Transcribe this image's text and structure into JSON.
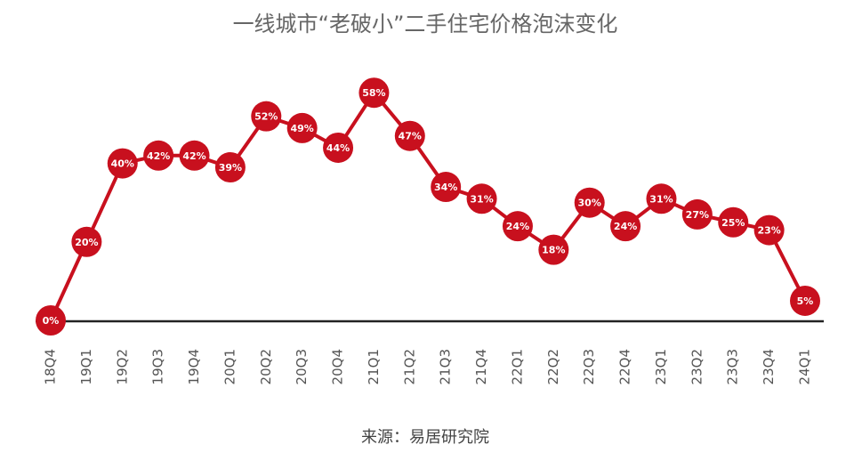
{
  "chart_data": {
    "type": "line",
    "title": "一线城市“老破小”二手住宅价格泡沫变化",
    "source": "来源：易居研究院",
    "categories": [
      "18Q4",
      "19Q1",
      "19Q2",
      "19Q3",
      "19Q4",
      "20Q1",
      "20Q2",
      "20Q3",
      "20Q4",
      "21Q1",
      "21Q2",
      "21Q3",
      "21Q4",
      "22Q1",
      "22Q2",
      "22Q3",
      "22Q4",
      "23Q1",
      "23Q2",
      "23Q3",
      "23Q4",
      "24Q1"
    ],
    "values": [
      0,
      20,
      40,
      42,
      42,
      39,
      52,
      49,
      44,
      58,
      47,
      34,
      31,
      24,
      18,
      30,
      24,
      31,
      27,
      25,
      23,
      5
    ],
    "value_labels": [
      "0%",
      "20%",
      "40%",
      "42%",
      "42%",
      "39%",
      "52%",
      "49%",
      "44%",
      "58%",
      "47%",
      "34%",
      "31%",
      "24%",
      "18%",
      "30%",
      "24%",
      "31%",
      "27%",
      "25%",
      "23%",
      "5%"
    ],
    "color": "#c8101e"
  }
}
